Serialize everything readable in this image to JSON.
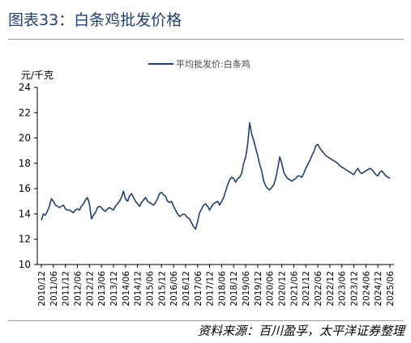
{
  "header": {
    "title": "图表33：白条鸡批发价格"
  },
  "footer": {
    "source": "资料来源：百川盈孚，太平洋证券整理"
  },
  "chart_data": {
    "type": "line",
    "title": "",
    "ylabel": "元/千克",
    "xlabel": "",
    "ylim": [
      10,
      24
    ],
    "yticks": [
      10,
      12,
      14,
      16,
      18,
      20,
      22,
      24
    ],
    "grid": false,
    "legend_position": "top-center",
    "x_tick_labels": [
      "2010/12",
      "2011/06",
      "2011/12",
      "2012/06",
      "2012/12",
      "2013/06",
      "2013/12",
      "2014/06",
      "2014/12",
      "2015/06",
      "2015/12",
      "2016/06",
      "2016/12",
      "2017/06",
      "2017/12",
      "2018/06",
      "2018/12",
      "2019/06",
      "2019/12",
      "2020/06",
      "2020/12",
      "2021/06",
      "2021/12",
      "2022/06",
      "2022/12",
      "2023/06",
      "2023/12",
      "2024/06",
      "2024/12",
      "2025/06"
    ],
    "series": [
      {
        "name": "平均批发价:白条鸡",
        "color": "#1f3f73",
        "points": [
          [
            "2010/12",
            13.5
          ],
          [
            "2011/01",
            14.0
          ],
          [
            "2011/02",
            13.9
          ],
          [
            "2011/03",
            14.2
          ],
          [
            "2011/04",
            14.6
          ],
          [
            "2011/05",
            15.2
          ],
          [
            "2011/06",
            15.0
          ],
          [
            "2011/07",
            14.7
          ],
          [
            "2011/08",
            14.6
          ],
          [
            "2011/09",
            14.5
          ],
          [
            "2011/10",
            14.6
          ],
          [
            "2011/11",
            14.7
          ],
          [
            "2011/12",
            14.4
          ],
          [
            "2012/01",
            14.3
          ],
          [
            "2012/02",
            14.3
          ],
          [
            "2012/03",
            14.2
          ],
          [
            "2012/04",
            14.1
          ],
          [
            "2012/05",
            14.3
          ],
          [
            "2012/06",
            14.4
          ],
          [
            "2012/07",
            14.3
          ],
          [
            "2012/08",
            14.6
          ],
          [
            "2012/09",
            14.8
          ],
          [
            "2012/10",
            15.1
          ],
          [
            "2012/11",
            15.3
          ],
          [
            "2012/12",
            14.8
          ],
          [
            "2013/01",
            13.6
          ],
          [
            "2013/02",
            13.9
          ],
          [
            "2013/03",
            14.1
          ],
          [
            "2013/04",
            14.5
          ],
          [
            "2013/05",
            14.6
          ],
          [
            "2013/06",
            14.5
          ],
          [
            "2013/07",
            14.3
          ],
          [
            "2013/08",
            14.2
          ],
          [
            "2013/09",
            14.4
          ],
          [
            "2013/10",
            14.5
          ],
          [
            "2013/11",
            14.4
          ],
          [
            "2013/12",
            14.3
          ],
          [
            "2014/01",
            14.6
          ],
          [
            "2014/02",
            14.8
          ],
          [
            "2014/03",
            15.0
          ],
          [
            "2014/04",
            15.3
          ],
          [
            "2014/05",
            15.8
          ],
          [
            "2014/06",
            15.2
          ],
          [
            "2014/07",
            15.0
          ],
          [
            "2014/08",
            15.4
          ],
          [
            "2014/09",
            15.6
          ],
          [
            "2014/10",
            15.3
          ],
          [
            "2014/11",
            15.0
          ],
          [
            "2014/12",
            14.8
          ],
          [
            "2015/01",
            14.6
          ],
          [
            "2015/02",
            14.9
          ],
          [
            "2015/03",
            15.1
          ],
          [
            "2015/04",
            15.3
          ],
          [
            "2015/05",
            15.0
          ],
          [
            "2015/06",
            14.9
          ],
          [
            "2015/07",
            14.8
          ],
          [
            "2015/08",
            14.7
          ],
          [
            "2015/09",
            14.9
          ],
          [
            "2015/10",
            15.2
          ],
          [
            "2015/11",
            15.6
          ],
          [
            "2015/12",
            15.7
          ],
          [
            "2016/01",
            15.5
          ],
          [
            "2016/02",
            15.4
          ],
          [
            "2016/03",
            15.0
          ],
          [
            "2016/04",
            14.9
          ],
          [
            "2016/05",
            15.0
          ],
          [
            "2016/06",
            14.6
          ],
          [
            "2016/07",
            14.3
          ],
          [
            "2016/08",
            14.0
          ],
          [
            "2016/09",
            13.8
          ],
          [
            "2016/10",
            13.9
          ],
          [
            "2016/11",
            14.0
          ],
          [
            "2016/12",
            13.9
          ],
          [
            "2017/01",
            13.7
          ],
          [
            "2017/02",
            13.6
          ],
          [
            "2017/03",
            13.3
          ],
          [
            "2017/04",
            13.0
          ],
          [
            "2017/05",
            12.8
          ],
          [
            "2017/06",
            13.4
          ],
          [
            "2017/07",
            14.1
          ],
          [
            "2017/08",
            14.4
          ],
          [
            "2017/09",
            14.7
          ],
          [
            "2017/10",
            14.8
          ],
          [
            "2017/11",
            14.6
          ],
          [
            "2017/12",
            14.3
          ],
          [
            "2018/01",
            14.6
          ],
          [
            "2018/02",
            14.8
          ],
          [
            "2018/03",
            14.9
          ],
          [
            "2018/04",
            15.0
          ],
          [
            "2018/05",
            14.7
          ],
          [
            "2018/06",
            15.0
          ],
          [
            "2018/07",
            15.3
          ],
          [
            "2018/08",
            15.8
          ],
          [
            "2018/09",
            16.3
          ],
          [
            "2018/10",
            16.7
          ],
          [
            "2018/11",
            16.9
          ],
          [
            "2018/12",
            16.8
          ],
          [
            "2019/01",
            16.5
          ],
          [
            "2019/02",
            16.8
          ],
          [
            "2019/03",
            16.9
          ],
          [
            "2019/04",
            17.2
          ],
          [
            "2019/05",
            18.0
          ],
          [
            "2019/06",
            18.5
          ],
          [
            "2019/07",
            19.5
          ],
          [
            "2019/08",
            21.2
          ],
          [
            "2019/09",
            20.3
          ],
          [
            "2019/10",
            19.8
          ],
          [
            "2019/11",
            19.2
          ],
          [
            "2019/12",
            18.6
          ],
          [
            "2020/01",
            17.9
          ],
          [
            "2020/02",
            17.4
          ],
          [
            "2020/03",
            16.6
          ],
          [
            "2020/04",
            16.2
          ],
          [
            "2020/05",
            16.0
          ],
          [
            "2020/06",
            15.9
          ],
          [
            "2020/07",
            16.1
          ],
          [
            "2020/08",
            16.3
          ],
          [
            "2020/09",
            16.8
          ],
          [
            "2020/10",
            17.6
          ],
          [
            "2020/11",
            18.5
          ],
          [
            "2020/12",
            18.0
          ],
          [
            "2021/01",
            17.3
          ],
          [
            "2021/02",
            17.0
          ],
          [
            "2021/03",
            16.8
          ],
          [
            "2021/04",
            16.7
          ],
          [
            "2021/05",
            16.6
          ],
          [
            "2021/06",
            16.7
          ],
          [
            "2021/07",
            16.8
          ],
          [
            "2021/08",
            17.0
          ],
          [
            "2021/09",
            17.0
          ],
          [
            "2021/10",
            16.9
          ],
          [
            "2021/11",
            17.2
          ],
          [
            "2021/12",
            17.6
          ],
          [
            "2022/01",
            17.9
          ],
          [
            "2022/02",
            18.2
          ],
          [
            "2022/03",
            18.6
          ],
          [
            "2022/04",
            18.9
          ],
          [
            "2022/05",
            19.4
          ],
          [
            "2022/06",
            19.5
          ],
          [
            "2022/07",
            19.2
          ],
          [
            "2022/08",
            19.0
          ],
          [
            "2022/09",
            18.8
          ],
          [
            "2022/10",
            18.6
          ],
          [
            "2022/11",
            18.5
          ],
          [
            "2022/12",
            18.4
          ],
          [
            "2023/01",
            18.3
          ],
          [
            "2023/02",
            18.2
          ],
          [
            "2023/03",
            18.1
          ],
          [
            "2023/04",
            18.0
          ],
          [
            "2023/05",
            17.8
          ],
          [
            "2023/06",
            17.7
          ],
          [
            "2023/07",
            17.6
          ],
          [
            "2023/08",
            17.5
          ],
          [
            "2023/09",
            17.4
          ],
          [
            "2023/10",
            17.3
          ],
          [
            "2023/11",
            17.2
          ],
          [
            "2023/12",
            17.1
          ],
          [
            "2024/01",
            17.4
          ],
          [
            "2024/02",
            17.6
          ],
          [
            "2024/03",
            17.3
          ],
          [
            "2024/04",
            17.2
          ],
          [
            "2024/05",
            17.3
          ],
          [
            "2024/06",
            17.4
          ],
          [
            "2024/07",
            17.5
          ],
          [
            "2024/08",
            17.6
          ],
          [
            "2024/09",
            17.5
          ],
          [
            "2024/10",
            17.3
          ],
          [
            "2024/11",
            17.1
          ],
          [
            "2024/12",
            17.0
          ],
          [
            "2025/01",
            17.3
          ],
          [
            "2025/02",
            17.4
          ],
          [
            "2025/03",
            17.2
          ],
          [
            "2025/04",
            17.0
          ],
          [
            "2025/05",
            16.9
          ],
          [
            "2025/06",
            16.8
          ]
        ]
      }
    ]
  }
}
